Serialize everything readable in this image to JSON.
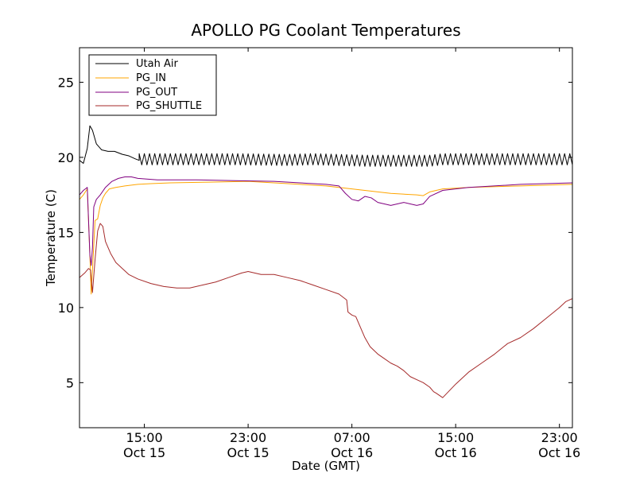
{
  "chart_data": {
    "type": "line",
    "title": "APOLLO PG Coolant Temperatures",
    "xlabel": "Date (GMT)",
    "ylabel": "Temperature (C)",
    "x_unit": "hours since Oct 15 00:00 GMT",
    "xlim": [
      10,
      48
    ],
    "ylim": [
      2,
      27.3
    ],
    "grid": false,
    "legend_position": "top-left",
    "y_ticks": [
      5,
      10,
      15,
      20,
      25
    ],
    "x_ticks": [
      {
        "x": 15,
        "label1": "15:00",
        "label2": "Oct 15"
      },
      {
        "x": 23,
        "label1": "23:00",
        "label2": "Oct 15"
      },
      {
        "x": 31,
        "label1": "07:00",
        "label2": "Oct 16"
      },
      {
        "x": 39,
        "label1": "15:00",
        "label2": "Oct 16"
      },
      {
        "x": 47,
        "label1": "23:00",
        "label2": "Oct 16"
      }
    ],
    "series": [
      {
        "name": "Utah Air",
        "color": "#000000",
        "oscillation": {
          "start": 14.6,
          "period": 0.4,
          "amplitude_hi": 0.45,
          "amplitude_lo": 0.3
        },
        "x": [
          10.0,
          10.3,
          10.6,
          10.8,
          11.0,
          11.3,
          11.7,
          12.2,
          12.7,
          13.3,
          13.8,
          14.3,
          14.6,
          16,
          18,
          22,
          26,
          28,
          30,
          32,
          34,
          36,
          37,
          38,
          40,
          44,
          48
        ],
        "y": [
          19.8,
          19.6,
          20.6,
          22.1,
          21.8,
          20.9,
          20.5,
          20.4,
          20.4,
          20.2,
          20.1,
          19.9,
          19.8,
          19.8,
          19.8,
          19.8,
          19.75,
          19.8,
          19.75,
          19.7,
          19.7,
          19.7,
          19.7,
          19.8,
          19.8,
          19.8,
          19.8
        ]
      },
      {
        "name": "PG_IN",
        "color": "#FFA500",
        "x": [
          10.0,
          10.3,
          10.6,
          10.8,
          10.9,
          11.0,
          11.2,
          11.4,
          11.6,
          11.8,
          12.0,
          12.3,
          12.8,
          13.5,
          14.5,
          15.5,
          17,
          20,
          23,
          25,
          27,
          29,
          30,
          32,
          34,
          36,
          36.5,
          37,
          38,
          40,
          44,
          48
        ],
        "y": [
          17.2,
          17.5,
          17.9,
          13.5,
          10.9,
          12.5,
          15.8,
          15.9,
          16.8,
          17.3,
          17.6,
          17.9,
          18.0,
          18.1,
          18.2,
          18.25,
          18.3,
          18.35,
          18.4,
          18.3,
          18.2,
          18.1,
          18.0,
          17.8,
          17.6,
          17.5,
          17.45,
          17.7,
          17.9,
          18.0,
          18.1,
          18.2
        ]
      },
      {
        "name": "PG_OUT",
        "color": "#800080",
        "x": [
          10.0,
          10.3,
          10.6,
          10.8,
          10.9,
          11.0,
          11.1,
          11.3,
          11.6,
          12.0,
          12.5,
          13.0,
          13.5,
          14.0,
          14.5,
          16,
          19,
          22,
          25,
          27,
          29,
          30,
          30.5,
          31,
          31.5,
          32,
          32.5,
          33,
          34,
          35,
          35.5,
          36,
          36.5,
          37,
          38,
          40,
          44,
          48
        ],
        "y": [
          17.5,
          17.8,
          18.0,
          13.5,
          12.8,
          14.0,
          16.7,
          17.2,
          17.5,
          18.0,
          18.4,
          18.6,
          18.7,
          18.7,
          18.6,
          18.5,
          18.5,
          18.45,
          18.4,
          18.3,
          18.2,
          18.1,
          17.6,
          17.2,
          17.1,
          17.4,
          17.3,
          17.0,
          16.8,
          17.0,
          16.9,
          16.8,
          16.9,
          17.4,
          17.8,
          18.0,
          18.2,
          18.3
        ]
      },
      {
        "name": "PG_SHUTTLE",
        "color": "#A52A2A",
        "x": [
          10.0,
          10.4,
          10.7,
          10.85,
          11.0,
          11.2,
          11.4,
          11.6,
          11.8,
          12.0,
          12.4,
          12.8,
          13.3,
          13.8,
          14.5,
          15.5,
          16.5,
          17.5,
          18.5,
          19.5,
          20.5,
          21.5,
          22.5,
          23.0,
          24.0,
          25.0,
          26.0,
          27.0,
          28.0,
          29.0,
          30.0,
          30.6,
          30.7,
          31.0,
          31.3,
          31.6,
          32.0,
          32.4,
          33.0,
          33.5,
          34.0,
          34.5,
          35.0,
          35.5,
          36.0,
          36.5,
          37.0,
          37.3,
          37.5,
          38.0,
          39.0,
          40.0,
          41.0,
          42.0,
          43.0,
          44.0,
          45.0,
          46.0,
          47.0,
          47.5,
          48.0
        ],
        "y": [
          12.0,
          12.3,
          12.6,
          12.5,
          11.0,
          13.2,
          15.1,
          15.6,
          15.4,
          14.4,
          13.6,
          13.0,
          12.6,
          12.2,
          11.9,
          11.6,
          11.4,
          11.3,
          11.3,
          11.5,
          11.7,
          12.0,
          12.3,
          12.4,
          12.2,
          12.2,
          12.0,
          11.8,
          11.5,
          11.2,
          10.9,
          10.5,
          9.7,
          9.5,
          9.4,
          8.8,
          8.0,
          7.4,
          6.9,
          6.6,
          6.3,
          6.1,
          5.8,
          5.4,
          5.2,
          5.0,
          4.7,
          4.4,
          4.3,
          4.0,
          4.9,
          5.7,
          6.3,
          6.9,
          7.6,
          8.0,
          8.6,
          9.3,
          10.0,
          10.4,
          10.6
        ]
      }
    ]
  }
}
